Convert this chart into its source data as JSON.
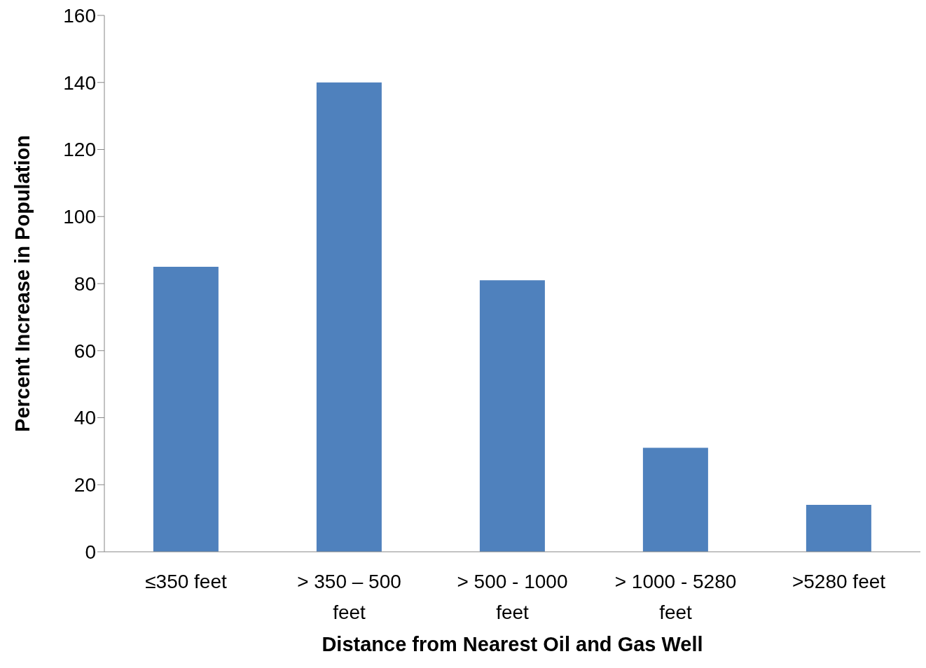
{
  "chart_data": {
    "type": "bar",
    "xlabel": "Distance from Nearest Oil and Gas Well",
    "ylabel": "Percent Increase in Population",
    "categories": [
      "≤350 feet",
      "> 350 – 500 feet",
      "> 500 - 1000 feet",
      "> 1000 - 5280 feet",
      ">5280 feet"
    ],
    "values": [
      85,
      140,
      81,
      31,
      14
    ],
    "color": "#4f81bd",
    "ylim": [
      0,
      160
    ],
    "yticks": [
      0,
      20,
      40,
      60,
      80,
      100,
      120,
      140,
      160
    ],
    "grid": false,
    "legend": false
  }
}
